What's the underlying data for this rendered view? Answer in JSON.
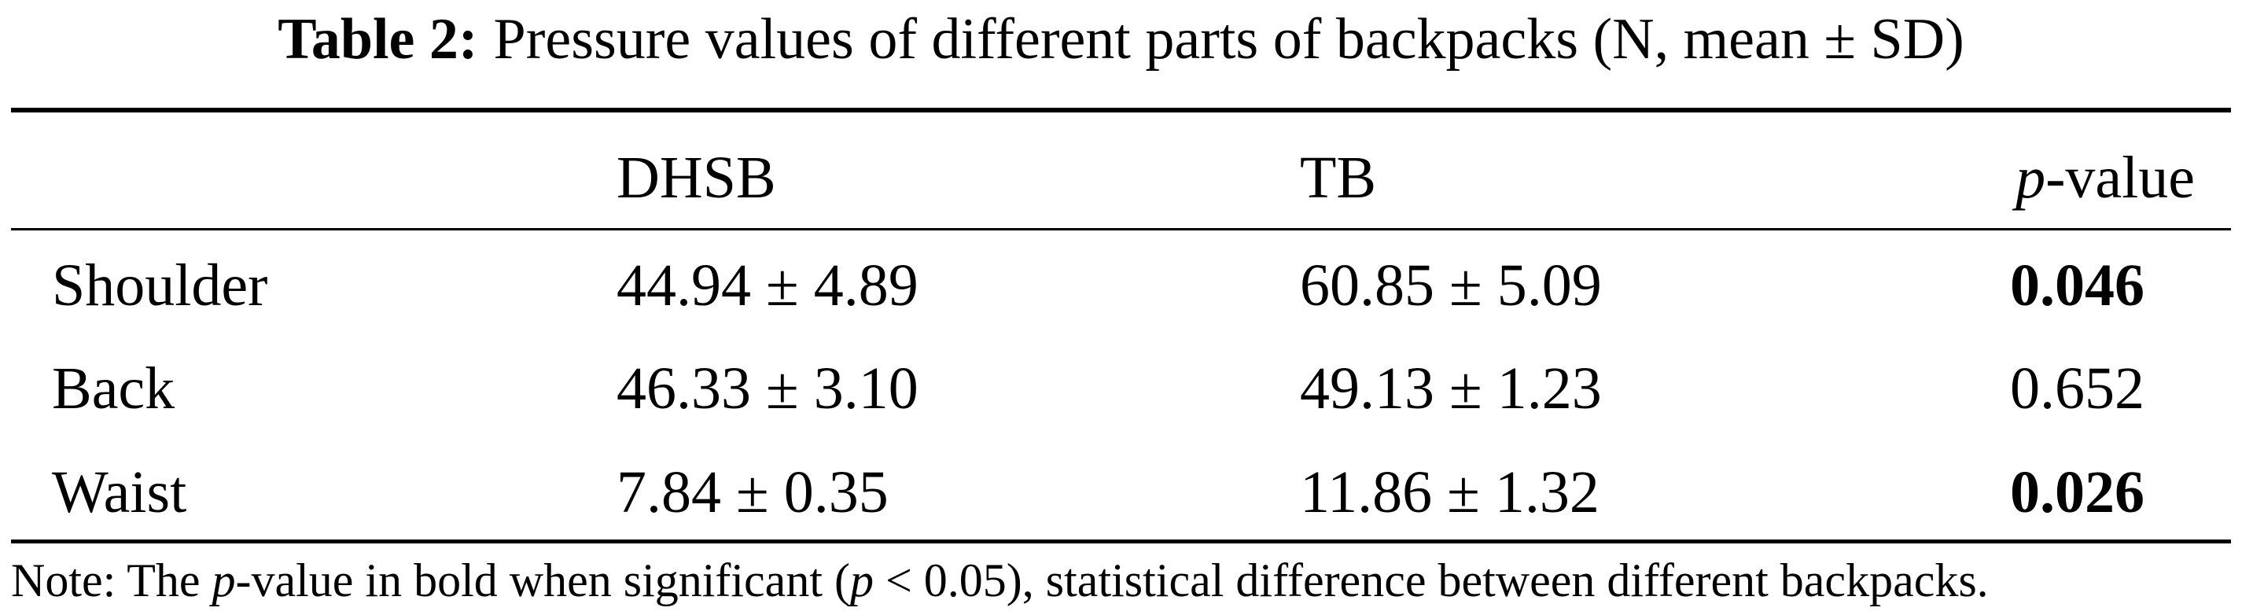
{
  "caption": {
    "label": "Table 2:",
    "text": "Pressure values of different parts of backpacks (N, mean ± SD)"
  },
  "table": {
    "columns": [
      "",
      "DHSB",
      "TB"
    ],
    "pvalue_header": {
      "italic": "p",
      "rest": "-value"
    },
    "rows": [
      {
        "part": "Shoulder",
        "dhsb": "44.94 ± 4.89",
        "tb": "60.85 ± 5.09",
        "p": "0.046",
        "significant": true
      },
      {
        "part": "Back",
        "dhsb": "46.33 ± 3.10",
        "tb": "49.13 ± 1.23",
        "p": "0.652",
        "significant": false
      },
      {
        "part": "Waist",
        "dhsb": "7.84 ± 0.35",
        "tb": "11.86 ± 1.32",
        "p": "0.026",
        "significant": true
      }
    ]
  },
  "note": {
    "part1": "Note: The ",
    "p1": "p",
    "part2": "-value in bold when significant (",
    "p2": "p",
    "part3": " < 0.05), statistical difference between different backpacks."
  }
}
